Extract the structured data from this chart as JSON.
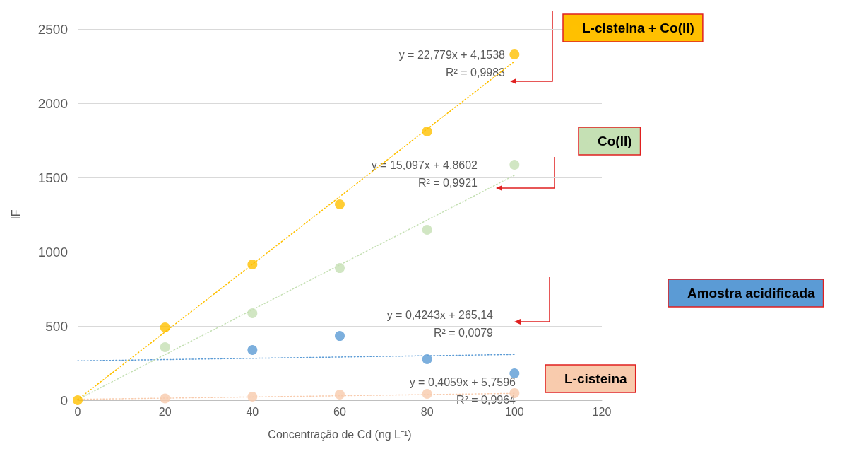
{
  "chart_data": {
    "type": "scatter",
    "xlabel": "Concentração de Cd (ng L⁻¹)",
    "ylabel": "IF",
    "x": [
      0,
      20,
      40,
      60,
      80,
      100
    ],
    "xlim": [
      0,
      120
    ],
    "xticks": [
      0,
      20,
      40,
      60,
      80,
      100,
      120
    ],
    "ylim": [
      0,
      2500
    ],
    "yticks": [
      0,
      500,
      1000,
      1500,
      2000,
      2500
    ],
    "grid": "y",
    "marker": "circle",
    "series": [
      {
        "name": "L-cisteina",
        "color": "#f8cbad",
        "values": [
          null,
          12,
          24,
          38,
          43,
          48
        ]
      },
      {
        "name": "Amostra acidificada",
        "color": "#5b9bd5",
        "values": [
          null,
          null,
          338,
          433,
          276,
          181
        ]
      },
      {
        "name": "Co(II)",
        "color": "#c5e0b4",
        "values": [
          null,
          357,
          586,
          890,
          1148,
          1586
        ]
      },
      {
        "name": "L-cisteina + Co(II)",
        "color": "#ffc000",
        "values": [
          0,
          490,
          914,
          1319,
          1810,
          2329
        ]
      },
      {
        "type": "line",
        "color": "#f8cbad",
        "values": [
          6,
          null,
          null,
          null,
          null,
          46
        ],
        "line_style": "dotted",
        "marker": "none"
      },
      {
        "type": "line",
        "color": "#5b9bd5",
        "values": [
          265,
          null,
          null,
          null,
          null,
          308
        ],
        "line_style": "dotted",
        "marker": "none"
      },
      {
        "type": "line",
        "color": "#c5e0b4",
        "values": [
          5,
          null,
          null,
          null,
          null,
          1515
        ],
        "line_style": "dotted",
        "marker": "none"
      },
      {
        "type": "line",
        "color": "#ffc000",
        "values": [
          4,
          null,
          null,
          null,
          null,
          2282
        ],
        "line_style": "dotted",
        "marker": "none"
      }
    ],
    "annotations": [
      "y = 0,4059x + 5,7596\nR² = 0,9964",
      "y = 0,4243x + 265,14\nR² = 0,0079",
      "y = 15,097x + 4,8602\nR² = 0,9921",
      "y = 22,779x + 4,1538\nR² = 0,9983"
    ]
  }
}
